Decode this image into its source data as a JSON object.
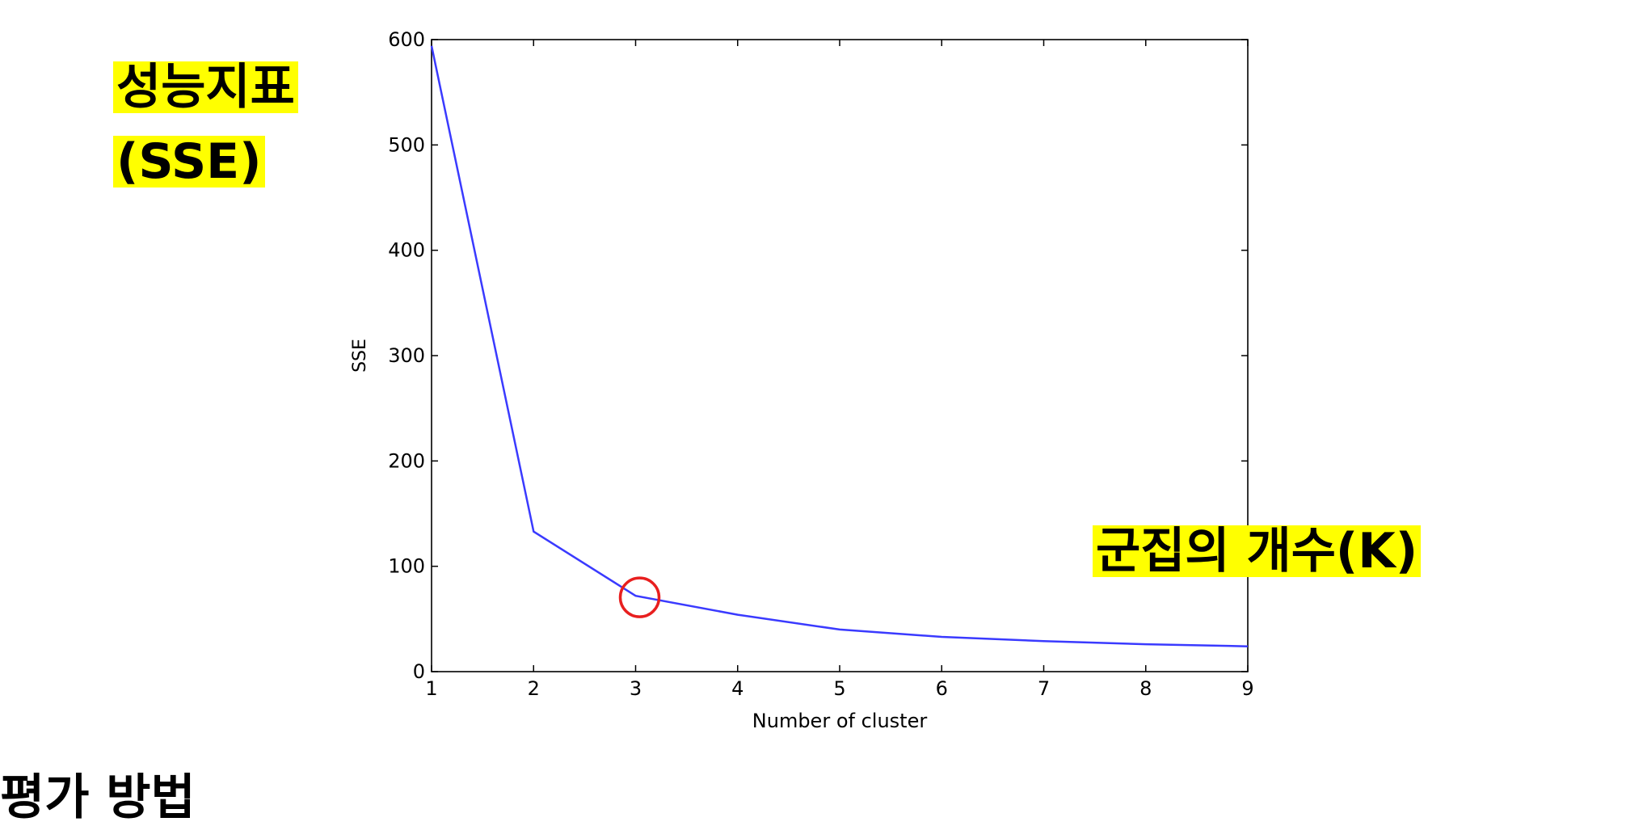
{
  "chart_data": {
    "type": "line",
    "xlabel": "Number of cluster",
    "ylabel": "SSE",
    "xlim": [
      1,
      9
    ],
    "ylim": [
      0,
      600
    ],
    "x_ticks": [
      1,
      2,
      3,
      4,
      5,
      6,
      7,
      8,
      9
    ],
    "y_ticks": [
      0,
      100,
      200,
      300,
      400,
      500,
      600
    ],
    "grid": false,
    "series": [
      {
        "x": [
          1,
          2,
          3,
          4,
          5,
          6,
          7,
          8,
          9
        ],
        "values": [
          594,
          133,
          72,
          54,
          40,
          33,
          29,
          26,
          24
        ],
        "color": "#3a3aff"
      }
    ],
    "highlight": {
      "x": 3,
      "y": 72,
      "color": "#e81f1f",
      "shape": "circle"
    }
  },
  "annotations": {
    "y_metric_line1": "성능지표",
    "y_metric_line2": "(SSE)",
    "x_metric": "군집의 개수(K)",
    "highlight_bg": "#ffff00"
  },
  "bottom_heading": "평가 방법"
}
